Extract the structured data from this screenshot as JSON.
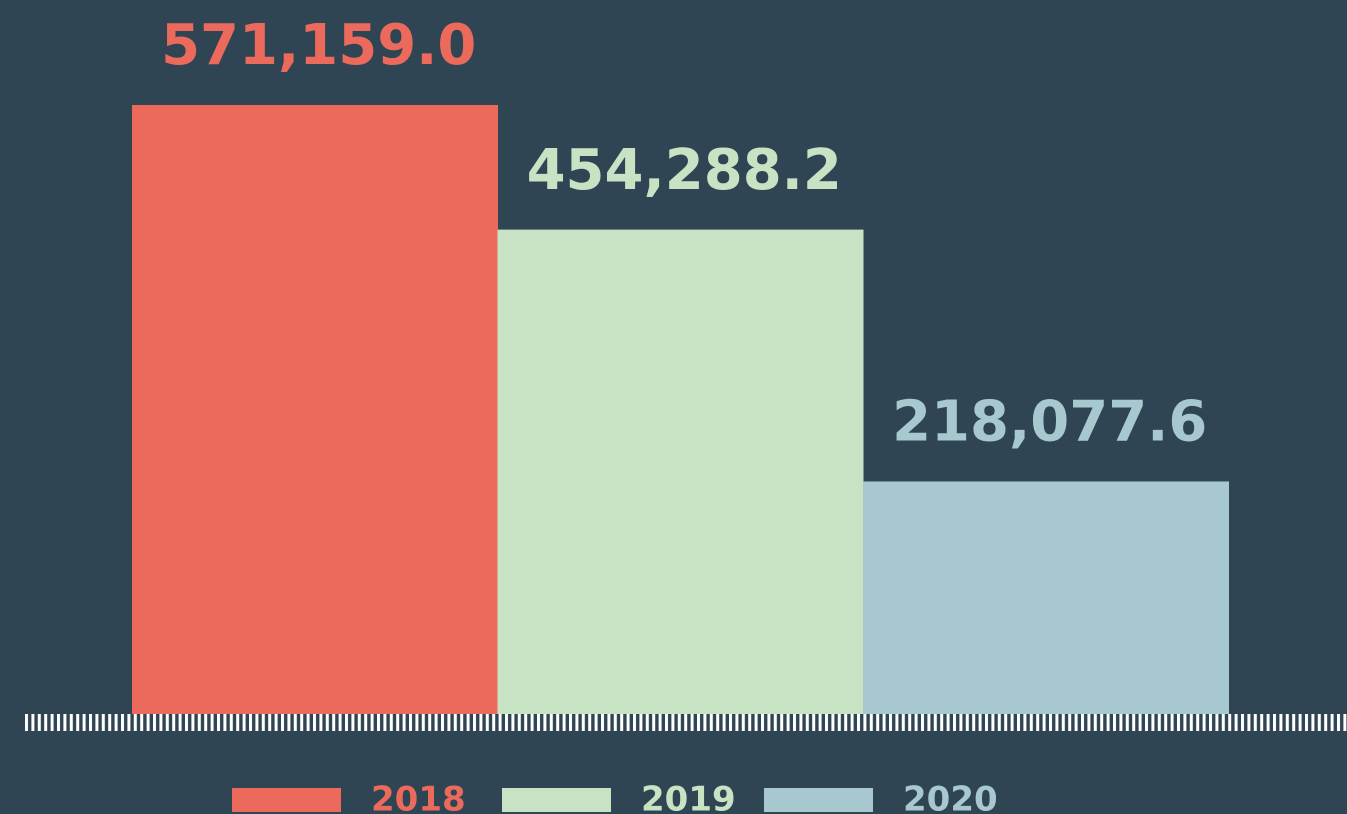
{
  "chart_data": {
    "type": "bar",
    "categories": [
      "2018",
      "2019",
      "2020"
    ],
    "values": [
      571159.0,
      454288.2,
      218077.6
    ],
    "value_labels": [
      "571,159.0",
      "454,288.2",
      "218,077.6"
    ],
    "colors": [
      "#ec6a5c",
      "#c8e3c4",
      "#a8c8cf"
    ]
  }
}
